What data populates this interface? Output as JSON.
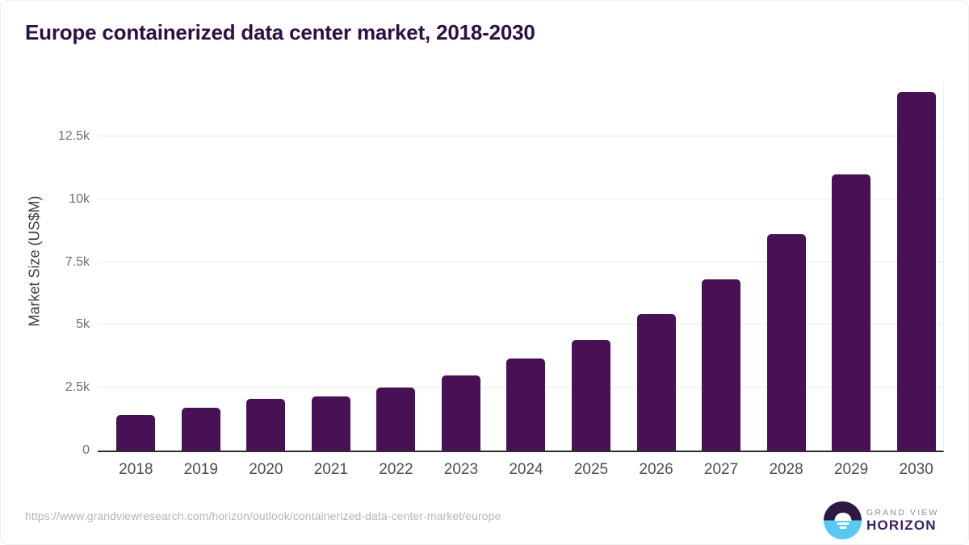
{
  "title": "Europe containerized data center market, 2018-2030",
  "source_url": "https://www.grandviewresearch.com/horizon/outlook/containerized-data-center-market/europe",
  "logo": {
    "top_text": "GRAND VIEW",
    "bottom_text": "HORIZON"
  },
  "colors": {
    "bar": "#481155",
    "title": "#2e1040",
    "axis_line": "#2d2d2d",
    "gridline": "#ebebeb",
    "ytick_text": "#707070",
    "xtick_text": "#4d4d4d",
    "source_text": "#b5b5b5",
    "logo_gray": "#8d8d8d",
    "logo_purple": "#3b2063",
    "logo_blue": "#5ac8f0",
    "logo_dark": "#2c1a45"
  },
  "chart_data": {
    "type": "bar",
    "title": "Europe containerized data center market, 2018-2030",
    "xlabel": "",
    "ylabel": "Market Size (US$M)",
    "categories": [
      "2018",
      "2019",
      "2020",
      "2021",
      "2022",
      "2023",
      "2024",
      "2025",
      "2026",
      "2027",
      "2028",
      "2029",
      "2030"
    ],
    "values": [
      1400,
      1720,
      2050,
      2150,
      2500,
      3000,
      3650,
      4400,
      5440,
      6820,
      8610,
      11000,
      14270
    ],
    "ylim": [
      0,
      14700
    ],
    "grid": true,
    "legend": false,
    "yticks": [
      {
        "value": 0,
        "label": "0"
      },
      {
        "value": 2500,
        "label": "2.5k"
      },
      {
        "value": 5000,
        "label": "5k"
      },
      {
        "value": 7500,
        "label": "7.5k"
      },
      {
        "value": 10000,
        "label": "10k"
      },
      {
        "value": 12500,
        "label": "12.5k"
      }
    ]
  }
}
